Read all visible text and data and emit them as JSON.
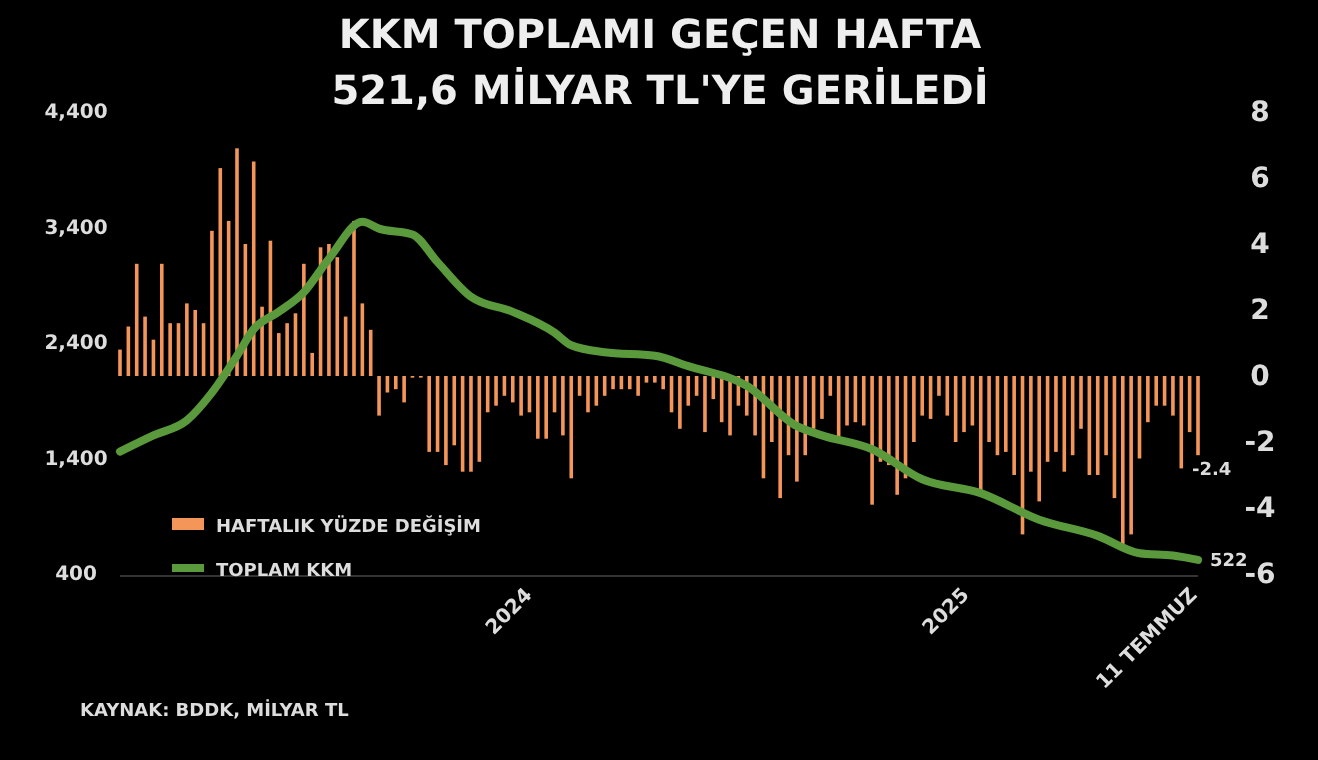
{
  "chart_data": {
    "type": "bar",
    "title": "KKM TOPLAMI GEÇEN HAFTA\n521,6 MİLYAR TL'YE GERİLEDİ",
    "x": [
      "2023-01-20",
      "2023-01-27",
      "2023-02-03",
      "2023-02-10",
      "2023-02-17",
      "2023-02-24",
      "2023-03-03",
      "2023-03-10",
      "2023-03-17",
      "2023-03-24",
      "2023-03-31",
      "2023-04-07",
      "2023-04-14",
      "2023-04-21",
      "2023-04-28",
      "2023-05-05",
      "2023-05-12",
      "2023-05-19",
      "2023-05-26",
      "2023-06-02",
      "2023-06-09",
      "2023-06-16",
      "2023-06-23",
      "2023-06-30",
      "2023-07-07",
      "2023-07-14",
      "2023-07-21",
      "2023-07-28",
      "2023-08-04",
      "2023-08-11",
      "2023-08-18",
      "2023-08-25",
      "2023-09-01",
      "2023-09-08",
      "2023-09-15",
      "2023-09-22",
      "2023-09-29",
      "2023-10-06",
      "2023-10-13",
      "2023-10-20",
      "2023-10-27",
      "2023-11-03",
      "2023-11-10",
      "2023-11-17",
      "2023-11-24",
      "2023-12-01",
      "2023-12-08",
      "2023-12-15",
      "2023-12-22",
      "2023-12-29",
      "2024-01-05",
      "2024-01-12",
      "2024-01-19",
      "2024-01-26",
      "2024-02-02",
      "2024-02-09",
      "2024-02-16",
      "2024-02-23",
      "2024-03-01",
      "2024-03-08",
      "2024-03-15",
      "2024-03-22",
      "2024-03-29",
      "2024-04-05",
      "2024-04-12",
      "2024-04-19",
      "2024-04-26",
      "2024-05-03",
      "2024-05-10",
      "2024-05-17",
      "2024-05-24",
      "2024-05-31",
      "2024-06-07",
      "2024-06-14",
      "2024-06-21",
      "2024-06-28",
      "2024-07-05",
      "2024-07-12",
      "2024-07-19",
      "2024-07-26",
      "2024-08-02",
      "2024-08-09",
      "2024-08-16",
      "2024-08-23",
      "2024-08-30",
      "2024-09-06",
      "2024-09-13",
      "2024-09-20",
      "2024-09-27",
      "2024-10-04",
      "2024-10-11",
      "2024-10-18",
      "2024-10-25",
      "2024-11-01",
      "2024-11-08",
      "2024-11-15",
      "2024-11-22",
      "2024-11-29",
      "2024-12-06",
      "2024-12-13",
      "2024-12-20",
      "2024-12-27",
      "2025-01-03",
      "2025-01-10",
      "2025-01-17",
      "2025-01-24",
      "2025-01-31",
      "2025-02-07",
      "2025-02-14",
      "2025-02-21",
      "2025-02-28",
      "2025-03-07",
      "2025-03-14",
      "2025-03-21",
      "2025-03-28",
      "2025-04-04",
      "2025-04-11",
      "2025-04-18",
      "2025-04-25",
      "2025-05-02",
      "2025-05-09",
      "2025-05-16",
      "2025-05-23",
      "2025-05-30",
      "2025-06-06",
      "2025-06-13",
      "2025-06-20",
      "2025-06-27",
      "2025-07-04",
      "2025-07-11"
    ],
    "series": [
      {
        "name": "HAFTALIK YÜZDE DEĞİŞİM",
        "axis": "y2",
        "color": "#f4955a",
        "values": [
          0.8,
          1.5,
          3.4,
          1.8,
          1.1,
          3.4,
          1.6,
          1.6,
          2.2,
          2.0,
          1.6,
          4.4,
          6.3,
          4.7,
          6.9,
          4.0,
          6.5,
          2.1,
          4.1,
          1.3,
          1.6,
          1.9,
          3.4,
          0.7,
          3.9,
          4.0,
          3.6,
          1.8,
          4.7,
          2.2,
          1.4,
          -1.2,
          -0.5,
          -0.4,
          -0.8,
          -0.05,
          -0.05,
          -2.3,
          -2.3,
          -2.7,
          -2.1,
          -2.9,
          -2.9,
          -2.6,
          -1.1,
          -0.9,
          -0.6,
          -0.8,
          -1.2,
          -1.1,
          -1.9,
          -1.9,
          -1.1,
          -1.8,
          -3.1,
          -0.6,
          -1.1,
          -0.9,
          -0.6,
          -0.4,
          -0.4,
          -0.4,
          -0.6,
          -0.2,
          -0.2,
          -0.4,
          -1.1,
          -1.6,
          -0.9,
          -0.6,
          -1.7,
          -0.7,
          -1.4,
          -1.8,
          -0.9,
          -1.2,
          -1.8,
          -3.1,
          -2.0,
          -3.7,
          -2.4,
          -3.2,
          -2.4,
          -1.6,
          -1.3,
          -0.6,
          -1.9,
          -1.5,
          -1.4,
          -1.5,
          -3.9,
          -2.6,
          -2.7,
          -3.6,
          -3.1,
          -2.0,
          -1.2,
          -1.3,
          -0.6,
          -1.2,
          -2.0,
          -1.7,
          -1.5,
          -3.5,
          -2.0,
          -2.4,
          -2.3,
          -3.0,
          -4.8,
          -2.9,
          -3.8,
          -2.6,
          -2.3,
          -2.9,
          -2.4,
          -1.6,
          -3.0,
          -3.0,
          -2.4,
          -3.7,
          -5.1,
          -4.8,
          -2.5,
          -1.4,
          -0.9,
          -0.9,
          -1.2,
          -2.8,
          -1.7,
          -2.4
        ],
        "value_labels": [
          null,
          null,
          null,
          null,
          null,
          null,
          null,
          null,
          null,
          null,
          null,
          null,
          null,
          null,
          null,
          null,
          null,
          null,
          null,
          null,
          null,
          null,
          null,
          null,
          null,
          null,
          null,
          null,
          null,
          null,
          null,
          null,
          null,
          null,
          null,
          null,
          null,
          null,
          null,
          null,
          null,
          null,
          null,
          null,
          null,
          null,
          null,
          null,
          null,
          null,
          null,
          null,
          null,
          null,
          null,
          null,
          null,
          null,
          null,
          null,
          null,
          null,
          null,
          null,
          null,
          null,
          null,
          null,
          null,
          null,
          null,
          null,
          null,
          null,
          null,
          null,
          null,
          null,
          null,
          null,
          null,
          null,
          null,
          null,
          null,
          null,
          null,
          null,
          null,
          null,
          null,
          null,
          null,
          null,
          null,
          null,
          null,
          null,
          null,
          null,
          null,
          null,
          null,
          null,
          null,
          null,
          null,
          null,
          null,
          null,
          null,
          null,
          null,
          null,
          null,
          null,
          null,
          null,
          null,
          null,
          null,
          null,
          null,
          null,
          null,
          null,
          null,
          null,
          null,
          "-2.4"
        ]
      },
      {
        "name": "TOPLAM KKM",
        "type": "line",
        "color": "#5b9a3c",
        "x": [
          "2023-01-20",
          "2023-02-17",
          "2023-03-17",
          "2023-04-07",
          "2023-04-28",
          "2023-05-12",
          "2023-06-02",
          "2023-06-23",
          "2023-07-14",
          "2023-08-11",
          "2023-08-25",
          "2023-09-22",
          "2023-10-13",
          "2023-11-10",
          "2023-12-15",
          "2024-01-19",
          "2024-02-02",
          "2024-03-01",
          "2024-04-12",
          "2024-05-10",
          "2024-06-28",
          "2024-08-09",
          "2024-08-30",
          "2024-10-11",
          "2024-11-22",
          "2025-01-10",
          "2025-02-28",
          "2025-04-18",
          "2025-05-23",
          "2025-06-20",
          "2025-07-11"
        ],
        "values": [
          1460,
          1600,
          1730,
          1970,
          2290,
          2520,
          2670,
          2840,
          3130,
          3450,
          3390,
          3340,
          3100,
          2800,
          2670,
          2490,
          2380,
          2320,
          2290,
          2200,
          2030,
          1680,
          1600,
          1480,
          1220,
          1100,
          870,
          730,
          580,
          560,
          522
        ],
        "value_labels": [
          null,
          null,
          null,
          null,
          null,
          null,
          null,
          null,
          null,
          null,
          null,
          null,
          null,
          null,
          null,
          null,
          null,
          null,
          null,
          null,
          null,
          null,
          null,
          null,
          null,
          null,
          null,
          null,
          null,
          null,
          "522"
        ]
      }
    ],
    "xticks": [
      {
        "value": "2024-01-01",
        "label": "2024"
      },
      {
        "value": "2025-01-01",
        "label": "2025"
      },
      {
        "value": "2025-07-11",
        "label": "11 TEMMUZ"
      }
    ],
    "xlim": [
      "2023-01-20",
      "2025-07-11"
    ],
    "ylim": [
      400,
      4400
    ],
    "yticks": [
      400,
      {
        "value": 1400,
        "label": "1,400"
      },
      {
        "value": 2400,
        "label": "2,400"
      },
      {
        "value": 3400,
        "label": "3,400"
      },
      {
        "value": 4400,
        "label": "4,400"
      }
    ],
    "y2lim": [
      -6,
      8
    ],
    "y2ticks": [
      -6,
      -4,
      -2,
      0,
      2,
      4,
      6,
      8
    ],
    "legend": "bottom left",
    "annotations": [
      "KAYNAK: BDDK, MİLYAR TL"
    ]
  }
}
